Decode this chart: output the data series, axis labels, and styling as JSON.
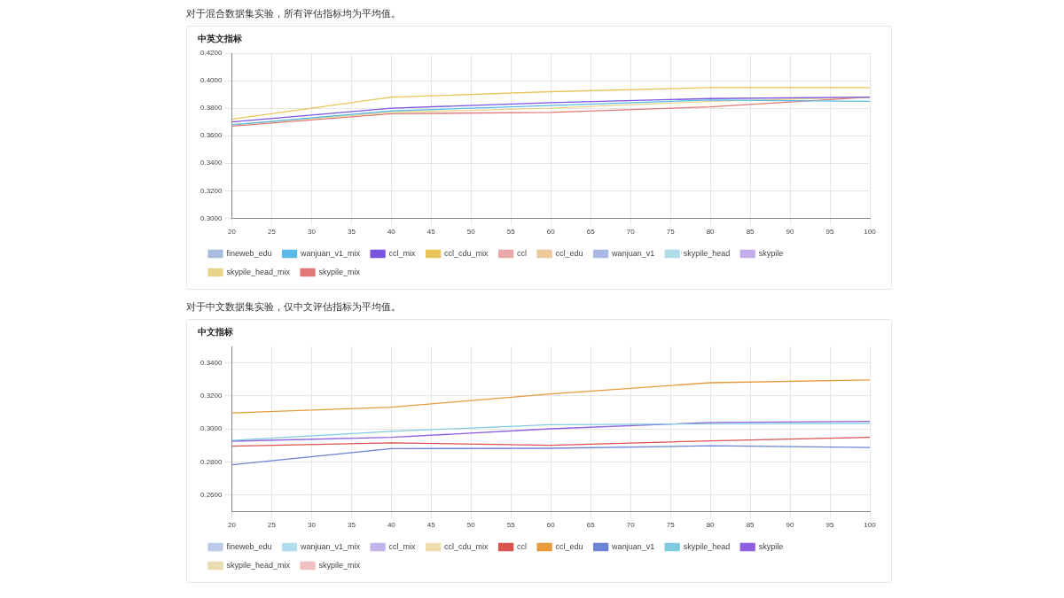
{
  "chart_data": [
    {
      "type": "line",
      "title": "对于混合数据集实验，所有评估指标均为平均值。",
      "subtitle": "中英文指标",
      "x": [
        20,
        40,
        60,
        80,
        100
      ],
      "xlim": [
        20,
        100
      ],
      "xticks": [
        20,
        25,
        30,
        35,
        40,
        45,
        50,
        55,
        60,
        65,
        70,
        75,
        80,
        85,
        90,
        95,
        100
      ],
      "ylim": [
        0.3,
        0.42
      ],
      "yticks": [
        {
          "value": 0.3,
          "label": "0.3000"
        },
        {
          "value": 0.32,
          "label": "0.3200"
        },
        {
          "value": 0.34,
          "label": "0.3400"
        },
        {
          "value": 0.36,
          "label": "0.3600"
        },
        {
          "value": 0.38,
          "label": "0.3800"
        },
        {
          "value": 0.4,
          "label": "0.4000"
        },
        {
          "value": 0.42,
          "label": "0.4200"
        }
      ],
      "grid": true,
      "legend": "bottom",
      "marker": "none",
      "line_style": "solid",
      "series": [
        {
          "name": "fineweb_edu",
          "color": "#a9bde0",
          "values": [
            null,
            null,
            null,
            null,
            null
          ]
        },
        {
          "name": "wanjuan_v1_mix",
          "color": "#5bbbe8",
          "values": [
            0.368,
            0.378,
            0.382,
            0.386,
            0.385
          ]
        },
        {
          "name": "ccl_mix",
          "color": "#7a55e0",
          "values": [
            0.37,
            0.38,
            0.384,
            0.387,
            0.388
          ]
        },
        {
          "name": "ccl_cdu_mix",
          "color": "#e8c45a",
          "values": [
            0.372,
            0.388,
            0.392,
            0.395,
            0.395
          ]
        },
        {
          "name": "ccl",
          "color": "#e8a8a8",
          "values": [
            null,
            null,
            null,
            null,
            null
          ]
        },
        {
          "name": "ccl_edu",
          "color": "#ecc89a",
          "values": [
            null,
            null,
            null,
            null,
            null
          ]
        },
        {
          "name": "wanjuan_v1",
          "color": "#aab8e6",
          "values": [
            null,
            null,
            null,
            null,
            null
          ]
        },
        {
          "name": "skypile_head",
          "color": "#b0dcea",
          "values": [
            null,
            null,
            null,
            null,
            null
          ]
        },
        {
          "name": "skypile",
          "color": "#c4aeea",
          "values": [
            null,
            null,
            null,
            null,
            null
          ]
        },
        {
          "name": "skypile_head_mix",
          "color": "#e8d488",
          "values": [
            0.368,
            0.377,
            0.38,
            0.385,
            0.388
          ]
        },
        {
          "name": "skypile_mix",
          "color": "#e07878",
          "values": [
            0.367,
            0.376,
            0.377,
            0.381,
            0.388
          ]
        }
      ]
    },
    {
      "type": "line",
      "title": "对于中文数据集实验，仅中文评估指标为平均值。",
      "subtitle": "中文指标",
      "x": [
        20,
        40,
        60,
        80,
        100
      ],
      "xlim": [
        20,
        100
      ],
      "xticks": [
        20,
        25,
        30,
        35,
        40,
        45,
        50,
        55,
        60,
        65,
        70,
        75,
        80,
        85,
        90,
        95,
        100
      ],
      "ylim": [
        0.25,
        0.35
      ],
      "yticks": [
        {
          "value": 0.26,
          "label": "0.2600"
        },
        {
          "value": 0.28,
          "label": "0.2800"
        },
        {
          "value": 0.3,
          "label": "0.3000"
        },
        {
          "value": 0.32,
          "label": "0.3200"
        },
        {
          "value": 0.34,
          "label": "0.3400"
        }
      ],
      "grid": true,
      "legend": "bottom",
      "marker": "none",
      "line_style": "solid",
      "series": [
        {
          "name": "fineweb_edu",
          "color": "#bccbe8",
          "values": [
            null,
            null,
            null,
            null,
            null
          ]
        },
        {
          "name": "wanjuan_v1_mix",
          "color": "#b0dcee",
          "values": [
            null,
            null,
            null,
            null,
            null
          ]
        },
        {
          "name": "ccl_mix",
          "color": "#c4b4ec",
          "values": [
            null,
            null,
            null,
            null,
            null
          ]
        },
        {
          "name": "ccl_cdu_mix",
          "color": "#eedcaa",
          "values": [
            null,
            null,
            null,
            null,
            null
          ]
        },
        {
          "name": "ccl",
          "color": "#d9534f",
          "values": [
            0.2896,
            0.2916,
            0.2901,
            0.2928,
            0.2949
          ]
        },
        {
          "name": "ccl_edu",
          "color": "#e89a3c",
          "values": [
            0.3097,
            0.3132,
            0.3212,
            0.328,
            0.3297
          ]
        },
        {
          "name": "wanjuan_v1",
          "color": "#6b84d6",
          "values": [
            0.2783,
            0.2881,
            0.2883,
            0.2898,
            0.2888
          ]
        },
        {
          "name": "skypile_head",
          "color": "#7ecbe0",
          "values": [
            0.2931,
            0.2986,
            0.3026,
            0.3031,
            0.3034
          ]
        },
        {
          "name": "skypile",
          "color": "#8e5fdf",
          "values": [
            0.2926,
            0.2949,
            0.3001,
            0.3039,
            0.3046
          ]
        },
        {
          "name": "skypile_head_mix",
          "color": "#e8dcb0",
          "values": [
            null,
            null,
            null,
            null,
            null
          ]
        },
        {
          "name": "skypile_mix",
          "color": "#eec0c0",
          "values": [
            null,
            null,
            null,
            null,
            null
          ]
        }
      ]
    }
  ]
}
